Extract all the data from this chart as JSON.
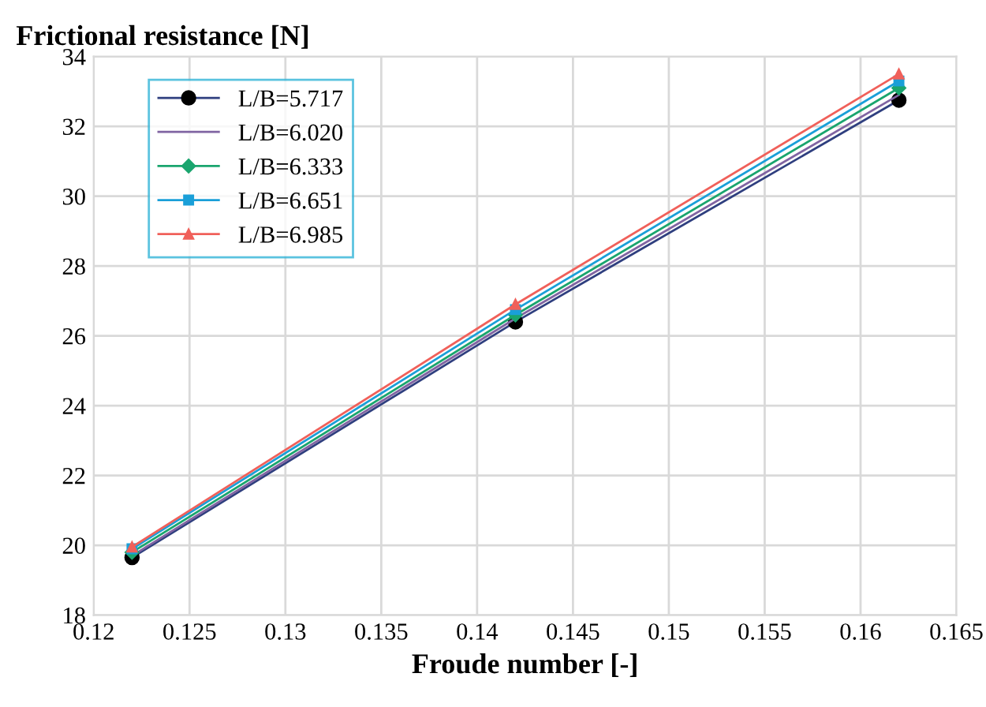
{
  "chart_data": {
    "type": "line",
    "xlabel": "Froude number [-]",
    "ylabel": "Frictional resistance [N]",
    "x": [
      0.122,
      0.142,
      0.162
    ],
    "series": [
      {
        "name": "L/B=5.717",
        "color": "#2f3f7f",
        "marker": "circle",
        "values": [
          19.65,
          26.4,
          32.75
        ]
      },
      {
        "name": "L/B=6.020",
        "color": "#8064a2",
        "marker": "none",
        "values": [
          19.7,
          26.5,
          32.9
        ]
      },
      {
        "name": "L/B=6.333",
        "color": "#1aa56e",
        "marker": "diamond",
        "values": [
          19.8,
          26.6,
          33.1
        ]
      },
      {
        "name": "L/B=6.651",
        "color": "#1a9fd8",
        "marker": "square",
        "values": [
          19.9,
          26.75,
          33.3
        ]
      },
      {
        "name": "L/B=6.985",
        "color": "#f0605a",
        "marker": "triangle",
        "values": [
          19.95,
          26.9,
          33.5
        ]
      }
    ],
    "xlim": [
      0.12,
      0.165
    ],
    "xticks": [
      0.12,
      0.125,
      0.13,
      0.135,
      0.14,
      0.145,
      0.15,
      0.155,
      0.16,
      0.165
    ],
    "ylim": [
      18,
      34
    ],
    "yticks": [
      18,
      20,
      22,
      24,
      26,
      28,
      30,
      32,
      34
    ],
    "grid": true,
    "legend": "top left",
    "line_style": "solid"
  }
}
